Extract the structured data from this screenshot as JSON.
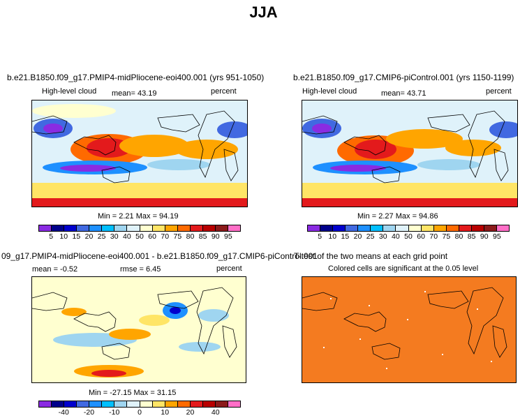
{
  "title": "JJA",
  "panels": {
    "top_left": {
      "title": "b.e21.B1850.f09_g17.PMIP4-midPliocene-eoi400.001 (yrs 951-1050)",
      "variable": "High-level cloud",
      "mean_text": "mean=  43.19",
      "units": "percent",
      "minmax_text": "Min =   2.21 Max =  94.19"
    },
    "top_right": {
      "title": "b.e21.B1850.f09_g17.CMIP6-piControl.001 (yrs 1150-1199)",
      "variable": "High-level cloud",
      "mean_text": "mean=  43.71",
      "units": "percent",
      "minmax_text": "Min =   2.27 Max =  94.86"
    },
    "bottom_left": {
      "title": "09_g17.PMIP4-midPliocene-eoi400.001 - b.e21.B1850.f09_g17.CMIP6-piControl.001",
      "mean_text": "mean =  -0.52",
      "rmse_text": "rmse =   6.45",
      "units": "percent",
      "minmax_text": "Min = -27.15 Max =  31.15"
    },
    "bottom_right": {
      "title": "T-test of the two means at each grid point",
      "subtitle": "Colored cells are significant at the 0.05 level"
    }
  },
  "colorbar_abs": {
    "labels": [
      "5",
      "10",
      "15",
      "20",
      "25",
      "30",
      "40",
      "50",
      "60",
      "70",
      "75",
      "80",
      "85",
      "90",
      "95"
    ],
    "colors": [
      "#8a2be2",
      "#00008b",
      "#0000cd",
      "#4169e1",
      "#1e90ff",
      "#00bfff",
      "#9fd5f0",
      "#dff2fa",
      "#ffffd0",
      "#ffe566",
      "#ffa500",
      "#ff6a00",
      "#e31a1c",
      "#b80000",
      "#8b1a1a",
      "#ff6ec7"
    ]
  },
  "colorbar_diff": {
    "labels": [
      "-40",
      "-20",
      "-10",
      "0",
      "10",
      "20",
      "40"
    ],
    "colors": [
      "#8a2be2",
      "#00008b",
      "#0000cd",
      "#4169e1",
      "#1e90ff",
      "#00bfff",
      "#9fd5f0",
      "#dff2fa",
      "#ffffd0",
      "#ffe566",
      "#ffa500",
      "#ff6a00",
      "#e31a1c",
      "#b80000",
      "#8b1a1a",
      "#ff6ec7"
    ]
  },
  "ttest_color": "#f47b20"
}
